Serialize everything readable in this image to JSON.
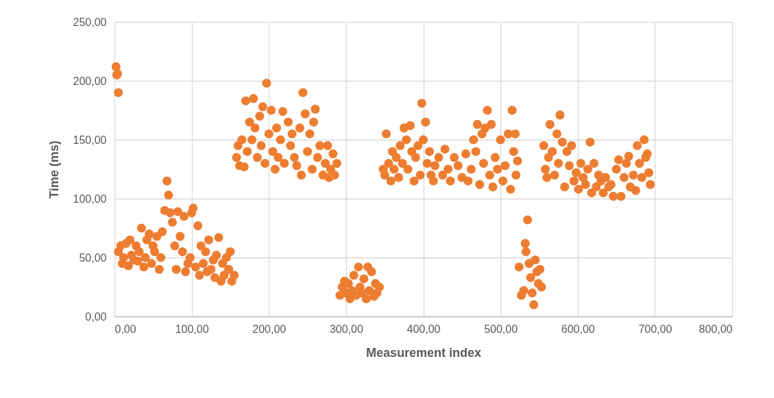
{
  "chart_data": {
    "type": "scatter",
    "xlabel": "Measurement index",
    "ylabel": "Time (ms)",
    "color": "#ed7d31",
    "marker": "circle",
    "grid": true,
    "xlim": [
      0,
      800
    ],
    "ylim": [
      0,
      250
    ],
    "xticks": [
      {
        "value": 0,
        "label": "0,00"
      },
      {
        "value": 100,
        "label": "100,00"
      },
      {
        "value": 200,
        "label": "200,00"
      },
      {
        "value": 300,
        "label": "300,00"
      },
      {
        "value": 400,
        "label": "400,00"
      },
      {
        "value": 500,
        "label": "500,00"
      },
      {
        "value": 600,
        "label": "600,00"
      },
      {
        "value": 700,
        "label": "700,00"
      },
      {
        "value": 800,
        "label": "800,00"
      }
    ],
    "yticks": [
      {
        "value": 0,
        "label": "0,00"
      },
      {
        "value": 50,
        "label": "50,00"
      },
      {
        "value": 100,
        "label": "100,00"
      },
      {
        "value": 150,
        "label": "150,00"
      },
      {
        "value": 200,
        "label": "200,00"
      },
      {
        "value": 250,
        "label": "250,00"
      }
    ],
    "x": [
      2,
      3,
      4,
      5,
      5,
      8,
      10,
      12,
      15,
      18,
      20,
      22,
      25,
      28,
      30,
      32,
      35,
      38,
      40,
      42,
      45,
      48,
      50,
      52,
      55,
      58,
      60,
      62,
      65,
      68,
      70,
      72,
      75,
      78,
      80,
      82,
      85,
      88,
      90,
      92,
      95,
      98,
      100,
      102,
      105,
      108,
      110,
      112,
      115,
      118,
      120,
      122,
      125,
      128,
      130,
      132,
      135,
      138,
      140,
      142,
      145,
      148,
      150,
      152,
      155,
      158,
      160,
      162,
      165,
      168,
      170,
      172,
      175,
      178,
      180,
      182,
      185,
      188,
      190,
      192,
      195,
      197,
      200,
      203,
      205,
      208,
      210,
      212,
      215,
      218,
      220,
      225,
      228,
      230,
      233,
      236,
      240,
      242,
      244,
      247,
      250,
      253,
      256,
      258,
      260,
      263,
      266,
      270,
      273,
      276,
      278,
      280,
      283,
      285,
      288,
      292,
      295,
      298,
      300,
      303,
      305,
      308,
      310,
      313,
      316,
      318,
      320,
      323,
      326,
      328,
      330,
      333,
      336,
      338,
      340,
      343,
      348,
      350,
      352,
      355,
      358,
      360,
      362,
      365,
      368,
      370,
      373,
      375,
      378,
      380,
      383,
      385,
      388,
      390,
      393,
      396,
      398,
      400,
      403,
      405,
      408,
      410,
      413,
      415,
      420,
      425,
      428,
      432,
      435,
      440,
      445,
      450,
      455,
      458,
      462,
      465,
      468,
      470,
      473,
      476,
      478,
      480,
      483,
      486,
      488,
      490,
      493,
      496,
      500,
      503,
      506,
      510,
      513,
      515,
      517,
      519,
      520,
      522,
      524,
      527,
      530,
      532,
      533,
      535,
      537,
      539,
      541,
      543,
      545,
      547,
      549,
      551,
      553,
      556,
      558,
      560,
      562,
      564,
      567,
      570,
      573,
      575,
      577,
      580,
      583,
      586,
      589,
      592,
      595,
      598,
      601,
      604,
      607,
      610,
      613,
      616,
      618,
      621,
      624,
      627,
      630,
      633,
      636,
      640,
      643,
      646,
      650,
      653,
      656,
      660,
      663,
      666,
      668,
      672,
      675,
      677,
      680,
      683,
      686,
      688,
      690,
      692,
      694
    ],
    "values": [
      212,
      205,
      206,
      190,
      55,
      60,
      45,
      50,
      62,
      43,
      65,
      52,
      48,
      60,
      47,
      55,
      75,
      42,
      50,
      65,
      70,
      45,
      60,
      55,
      68,
      40,
      50,
      72,
      90,
      115,
      103,
      88,
      80,
      60,
      40,
      89,
      68,
      55,
      85,
      38,
      45,
      50,
      88,
      92,
      42,
      77,
      35,
      60,
      45,
      55,
      38,
      65,
      40,
      48,
      33,
      52,
      67,
      30,
      45,
      35,
      50,
      40,
      55,
      30,
      35,
      135,
      145,
      128,
      150,
      127,
      183,
      140,
      165,
      150,
      185,
      160,
      135,
      170,
      145,
      178,
      130,
      198,
      155,
      175,
      140,
      125,
      160,
      135,
      150,
      174,
      130,
      165,
      145,
      155,
      135,
      128,
      160,
      120,
      190,
      172,
      140,
      155,
      125,
      165,
      176,
      135,
      145,
      120,
      130,
      145,
      118,
      125,
      138,
      120,
      130,
      18,
      25,
      30,
      20,
      28,
      15,
      22,
      35,
      18,
      42,
      25,
      20,
      32,
      15,
      42,
      22,
      38,
      17,
      28,
      20,
      25,
      125,
      120,
      155,
      130,
      115,
      140,
      125,
      135,
      118,
      145,
      130,
      160,
      150,
      125,
      162,
      140,
      115,
      135,
      145,
      120,
      181,
      150,
      165,
      130,
      140,
      120,
      115,
      128,
      135,
      120,
      142,
      125,
      115,
      135,
      128,
      118,
      138,
      115,
      125,
      150,
      140,
      163,
      112,
      155,
      130,
      160,
      175,
      120,
      163,
      110,
      135,
      125,
      150,
      115,
      128,
      155,
      108,
      175,
      140,
      155,
      120,
      132,
      42,
      18,
      22,
      62,
      55,
      82,
      45,
      33,
      20,
      10,
      48,
      38,
      28,
      40,
      25,
      145,
      125,
      118,
      135,
      163,
      140,
      120,
      155,
      130,
      171,
      148,
      110,
      140,
      128,
      145,
      115,
      122,
      108,
      130,
      118,
      112,
      125,
      148,
      105,
      130,
      110,
      120,
      115,
      105,
      118,
      110,
      112,
      102,
      125,
      133,
      102,
      118,
      130,
      136,
      110,
      120,
      107,
      145,
      130,
      118,
      150,
      135,
      138,
      122,
      112
    ]
  }
}
